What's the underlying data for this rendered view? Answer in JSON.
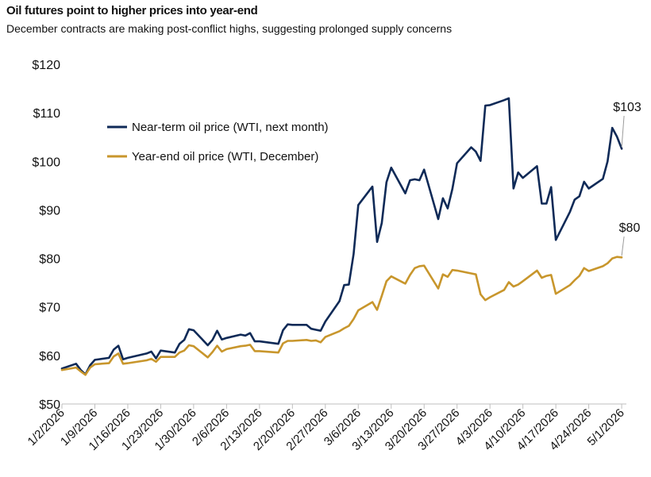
{
  "title": "Oil futures point to higher prices into year-end",
  "subtitle": "December  contracts are making post-conflict highs, suggesting prolonged supply concerns",
  "colors": {
    "near_term": "#0f2a57",
    "year_end": "#c8962c",
    "axis": "#bfbfbf"
  },
  "chart_data": {
    "type": "line",
    "title": "Oil futures point to higher prices into year-end",
    "subtitle": "December  contracts are making post-conflict highs, suggesting prolonged supply concerns",
    "xlabel": "",
    "ylabel": "",
    "ylim": [
      50,
      120
    ],
    "xlim": [
      "2026-01-02",
      "2026-05-02"
    ],
    "y_ticks": [
      50,
      60,
      70,
      80,
      90,
      100,
      110,
      120
    ],
    "y_tick_labels": [
      "$50",
      "$60",
      "$70",
      "$80",
      "$90",
      "$100",
      "$110",
      "$120"
    ],
    "x_ticks": [
      "2026-01-02",
      "2026-01-09",
      "2026-01-16",
      "2026-01-23",
      "2026-01-30",
      "2026-02-06",
      "2026-02-13",
      "2026-02-20",
      "2026-02-27",
      "2026-03-06",
      "2026-03-13",
      "2026-03-20",
      "2026-03-27",
      "2026-04-03",
      "2026-04-10",
      "2026-04-17",
      "2026-04-24",
      "2026-05-01"
    ],
    "x_tick_labels": [
      "1/2/2026",
      "1/9/2026",
      "1/16/2026",
      "1/23/2026",
      "1/30/2026",
      "2/6/2026",
      "2/13/2026",
      "2/20/2026",
      "2/27/2026",
      "3/6/2026",
      "3/13/2026",
      "3/20/2026",
      "3/27/2026",
      "4/3/2026",
      "4/10/2026",
      "4/17/2026",
      "4/24/2026",
      "5/1/2026"
    ],
    "grid": false,
    "legend_position": "upper-left",
    "series": [
      {
        "name": "Near-term oil price (WTI, next month)",
        "color": "#0f2a57",
        "end_label": "$103",
        "points": [
          [
            "2026-01-02",
            57.3
          ],
          [
            "2026-01-05",
            58.3
          ],
          [
            "2026-01-06",
            57.0
          ],
          [
            "2026-01-07",
            56.1
          ],
          [
            "2026-01-08",
            58.0
          ],
          [
            "2026-01-09",
            59.1
          ],
          [
            "2026-01-12",
            59.5
          ],
          [
            "2026-01-13",
            61.2
          ],
          [
            "2026-01-14",
            62.0
          ],
          [
            "2026-01-15",
            59.2
          ],
          [
            "2026-01-16",
            59.5
          ],
          [
            "2026-01-20",
            60.4
          ],
          [
            "2026-01-21",
            60.8
          ],
          [
            "2026-01-22",
            59.4
          ],
          [
            "2026-01-23",
            61.0
          ],
          [
            "2026-01-26",
            60.6
          ],
          [
            "2026-01-27",
            62.4
          ],
          [
            "2026-01-28",
            63.2
          ],
          [
            "2026-01-29",
            65.4
          ],
          [
            "2026-01-30",
            65.2
          ],
          [
            "2026-02-02",
            62.1
          ],
          [
            "2026-02-03",
            63.2
          ],
          [
            "2026-02-04",
            65.1
          ],
          [
            "2026-02-05",
            63.3
          ],
          [
            "2026-02-06",
            63.6
          ],
          [
            "2026-02-09",
            64.3
          ],
          [
            "2026-02-10",
            64.1
          ],
          [
            "2026-02-11",
            64.6
          ],
          [
            "2026-02-12",
            62.9
          ],
          [
            "2026-02-13",
            62.9
          ],
          [
            "2026-02-17",
            62.4
          ],
          [
            "2026-02-18",
            65.2
          ],
          [
            "2026-02-19",
            66.4
          ],
          [
            "2026-02-20",
            66.3
          ],
          [
            "2026-02-23",
            66.3
          ],
          [
            "2026-02-24",
            65.5
          ],
          [
            "2026-02-25",
            65.3
          ],
          [
            "2026-02-26",
            65.1
          ],
          [
            "2026-02-27",
            67.0
          ],
          [
            "2026-03-02",
            71.2
          ],
          [
            "2026-03-03",
            74.5
          ],
          [
            "2026-03-04",
            74.6
          ],
          [
            "2026-03-05",
            80.9
          ],
          [
            "2026-03-06",
            91.0
          ],
          [
            "2026-03-09",
            94.8
          ],
          [
            "2026-03-10",
            83.4
          ],
          [
            "2026-03-11",
            87.3
          ],
          [
            "2026-03-12",
            95.7
          ],
          [
            "2026-03-13",
            98.7
          ],
          [
            "2026-03-16",
            93.4
          ],
          [
            "2026-03-17",
            96.1
          ],
          [
            "2026-03-18",
            96.3
          ],
          [
            "2026-03-19",
            96.1
          ],
          [
            "2026-03-20",
            98.3
          ],
          [
            "2026-03-23",
            88.1
          ],
          [
            "2026-03-24",
            92.4
          ],
          [
            "2026-03-25",
            90.3
          ],
          [
            "2026-03-26",
            94.3
          ],
          [
            "2026-03-27",
            99.6
          ],
          [
            "2026-03-30",
            102.9
          ],
          [
            "2026-03-31",
            102.0
          ],
          [
            "2026-04-01",
            100.1
          ],
          [
            "2026-04-02",
            111.5
          ],
          [
            "2026-04-03",
            111.6
          ],
          [
            "2026-04-06",
            112.6
          ],
          [
            "2026-04-07",
            113.0
          ],
          [
            "2026-04-08",
            94.4
          ],
          [
            "2026-04-09",
            97.7
          ],
          [
            "2026-04-10",
            96.6
          ],
          [
            "2026-04-13",
            99.0
          ],
          [
            "2026-04-14",
            91.3
          ],
          [
            "2026-04-15",
            91.3
          ],
          [
            "2026-04-16",
            94.7
          ],
          [
            "2026-04-17",
            83.8
          ],
          [
            "2026-04-20",
            89.6
          ],
          [
            "2026-04-21",
            92.1
          ],
          [
            "2026-04-22",
            92.8
          ],
          [
            "2026-04-23",
            95.8
          ],
          [
            "2026-04-24",
            94.4
          ],
          [
            "2026-04-27",
            96.4
          ],
          [
            "2026-04-28",
            100.0
          ],
          [
            "2026-04-29",
            106.9
          ],
          [
            "2026-04-30",
            105.1
          ],
          [
            "2026-05-01",
            102.6
          ]
        ]
      },
      {
        "name": "Year-end oil price (WTI, December)",
        "color": "#c8962c",
        "end_label": "$80",
        "points": [
          [
            "2026-01-02",
            57.0
          ],
          [
            "2026-01-05",
            57.5
          ],
          [
            "2026-01-06",
            56.7
          ],
          [
            "2026-01-07",
            56.0
          ],
          [
            "2026-01-08",
            57.5
          ],
          [
            "2026-01-09",
            58.2
          ],
          [
            "2026-01-12",
            58.4
          ],
          [
            "2026-01-13",
            59.8
          ],
          [
            "2026-01-14",
            60.4
          ],
          [
            "2026-01-15",
            58.3
          ],
          [
            "2026-01-16",
            58.4
          ],
          [
            "2026-01-20",
            59.0
          ],
          [
            "2026-01-21",
            59.3
          ],
          [
            "2026-01-22",
            58.7
          ],
          [
            "2026-01-23",
            59.7
          ],
          [
            "2026-01-26",
            59.7
          ],
          [
            "2026-01-27",
            60.6
          ],
          [
            "2026-01-28",
            61.0
          ],
          [
            "2026-01-29",
            62.1
          ],
          [
            "2026-01-30",
            61.9
          ],
          [
            "2026-02-02",
            59.6
          ],
          [
            "2026-02-03",
            60.7
          ],
          [
            "2026-02-04",
            62.0
          ],
          [
            "2026-02-05",
            60.8
          ],
          [
            "2026-02-06",
            61.3
          ],
          [
            "2026-02-09",
            61.9
          ],
          [
            "2026-02-10",
            62.0
          ],
          [
            "2026-02-11",
            62.2
          ],
          [
            "2026-02-12",
            60.9
          ],
          [
            "2026-02-13",
            60.9
          ],
          [
            "2026-02-17",
            60.6
          ],
          [
            "2026-02-18",
            62.5
          ],
          [
            "2026-02-19",
            63.0
          ],
          [
            "2026-02-20",
            63.0
          ],
          [
            "2026-02-23",
            63.2
          ],
          [
            "2026-02-24",
            63.0
          ],
          [
            "2026-02-25",
            63.1
          ],
          [
            "2026-02-26",
            62.7
          ],
          [
            "2026-02-27",
            63.8
          ],
          [
            "2026-03-02",
            65.0
          ],
          [
            "2026-03-03",
            65.6
          ],
          [
            "2026-03-04",
            66.1
          ],
          [
            "2026-03-05",
            67.5
          ],
          [
            "2026-03-06",
            69.3
          ],
          [
            "2026-03-09",
            71.0
          ],
          [
            "2026-03-10",
            69.4
          ],
          [
            "2026-03-11",
            72.3
          ],
          [
            "2026-03-12",
            75.3
          ],
          [
            "2026-03-13",
            76.3
          ],
          [
            "2026-03-16",
            74.8
          ],
          [
            "2026-03-17",
            76.6
          ],
          [
            "2026-03-18",
            78.0
          ],
          [
            "2026-03-19",
            78.4
          ],
          [
            "2026-03-20",
            78.5
          ],
          [
            "2026-03-23",
            73.8
          ],
          [
            "2026-03-24",
            76.7
          ],
          [
            "2026-03-25",
            76.2
          ],
          [
            "2026-03-26",
            77.6
          ],
          [
            "2026-03-27",
            77.5
          ],
          [
            "2026-03-30",
            76.9
          ],
          [
            "2026-03-31",
            76.7
          ],
          [
            "2026-04-01",
            72.6
          ],
          [
            "2026-04-02",
            71.4
          ],
          [
            "2026-04-03",
            72.0
          ],
          [
            "2026-04-06",
            73.5
          ],
          [
            "2026-04-07",
            75.1
          ],
          [
            "2026-04-08",
            74.2
          ],
          [
            "2026-04-09",
            74.6
          ],
          [
            "2026-04-10",
            75.3
          ],
          [
            "2026-04-13",
            77.5
          ],
          [
            "2026-04-14",
            76.0
          ],
          [
            "2026-04-15",
            76.4
          ],
          [
            "2026-04-16",
            76.6
          ],
          [
            "2026-04-17",
            72.7
          ],
          [
            "2026-04-20",
            74.5
          ],
          [
            "2026-04-21",
            75.5
          ],
          [
            "2026-04-22",
            76.4
          ],
          [
            "2026-04-23",
            78.0
          ],
          [
            "2026-04-24",
            77.4
          ],
          [
            "2026-04-27",
            78.4
          ],
          [
            "2026-04-28",
            79.0
          ],
          [
            "2026-04-29",
            80.0
          ],
          [
            "2026-04-30",
            80.3
          ],
          [
            "2026-05-01",
            80.2
          ]
        ]
      }
    ]
  }
}
